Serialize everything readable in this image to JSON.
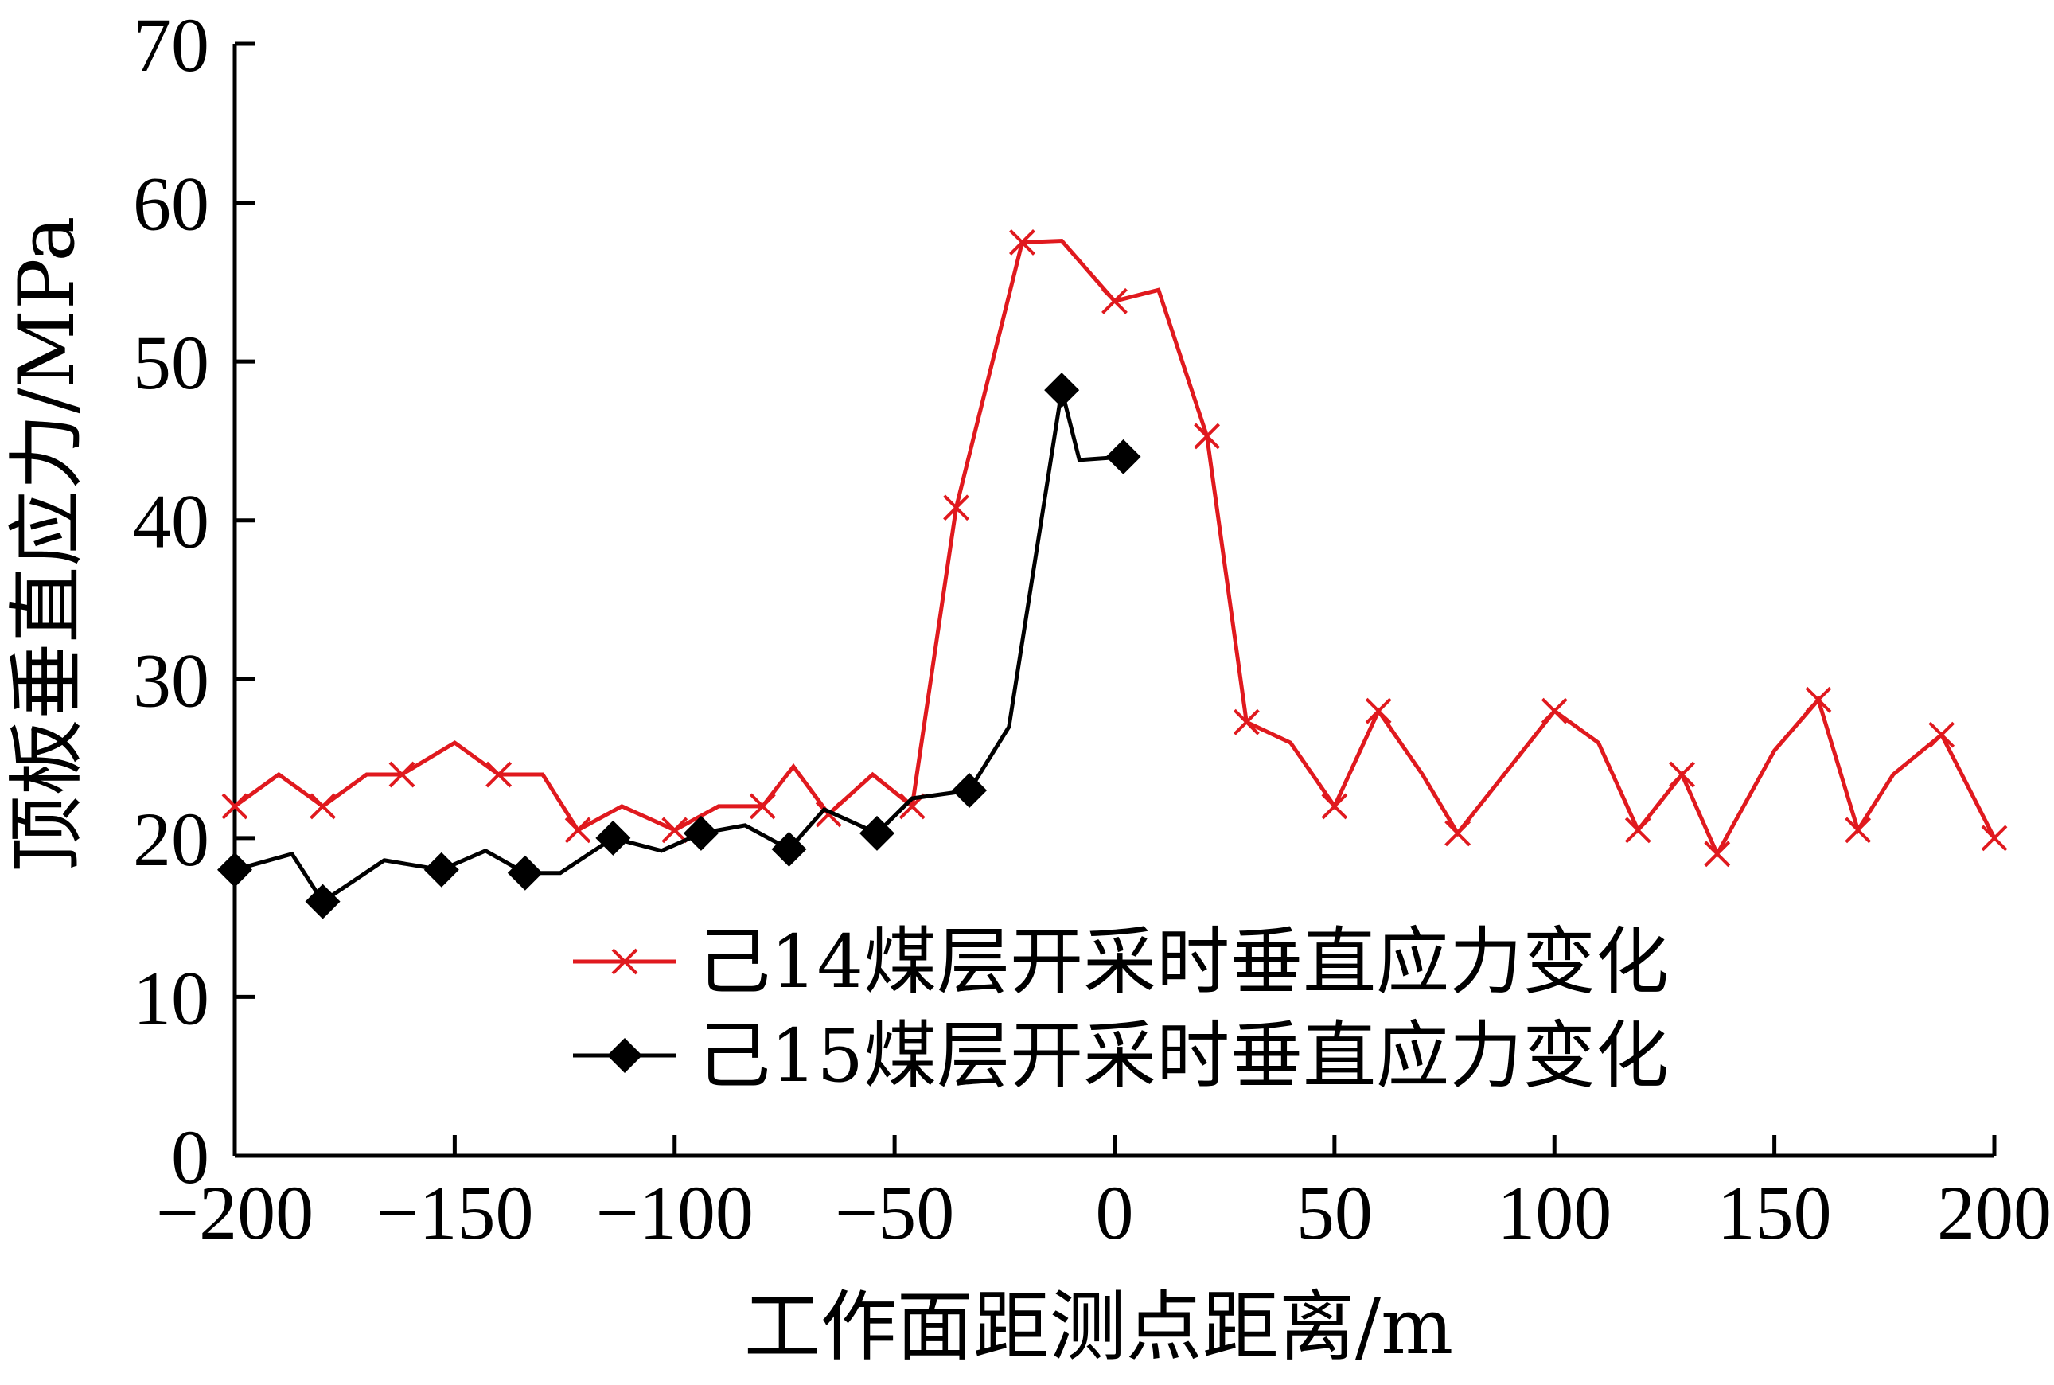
{
  "chart_data": {
    "type": "line",
    "xlabel": "工作面距测点距离/m",
    "ylabel": "顶板垂直应力/MPa",
    "xlim": [
      -200,
      200
    ],
    "ylim": [
      0,
      70
    ],
    "x_ticks": [
      "−200",
      "−150",
      "−100",
      "−50",
      "0",
      "50",
      "100",
      "150",
      "200"
    ],
    "y_ticks": [
      "0",
      "10",
      "20",
      "30",
      "40",
      "50",
      "60",
      "70"
    ],
    "grid": false,
    "legend_position": "center-bottom",
    "series": [
      {
        "name": "己14煤层开采时垂直应力变化",
        "color": "#e0191e",
        "marker": "x",
        "points": [
          [
            -200,
            22
          ],
          [
            -190,
            24
          ],
          [
            -180,
            22
          ],
          [
            -170,
            24
          ],
          [
            -162,
            24
          ],
          [
            -150,
            26
          ],
          [
            -140,
            24
          ],
          [
            -130,
            24
          ],
          [
            -122,
            20.5
          ],
          [
            -112,
            22
          ],
          [
            -100,
            20.5
          ],
          [
            -90,
            22
          ],
          [
            -80,
            22
          ],
          [
            -73,
            24.5
          ],
          [
            -65,
            21.5
          ],
          [
            -55,
            24
          ],
          [
            -46,
            22
          ],
          [
            -36,
            40.8
          ],
          [
            -21,
            57.5
          ],
          [
            -12,
            57.6
          ],
          [
            0,
            53.8
          ],
          [
            10,
            54.5
          ],
          [
            21,
            45.3
          ],
          [
            30,
            27.3
          ],
          [
            40,
            26
          ],
          [
            50,
            22
          ],
          [
            60,
            28
          ],
          [
            70,
            24
          ],
          [
            78,
            20.3
          ],
          [
            90,
            24.5
          ],
          [
            100,
            28
          ],
          [
            110,
            26
          ],
          [
            119,
            20.5
          ],
          [
            129,
            24
          ],
          [
            137,
            19
          ],
          [
            150,
            25.5
          ],
          [
            160,
            28.7
          ],
          [
            169,
            20.5
          ],
          [
            177,
            24
          ],
          [
            188,
            26.5
          ],
          [
            200,
            20
          ]
        ],
        "marker_at": [
          -200,
          -180,
          -162,
          -140,
          -122,
          -100,
          -80,
          -65,
          -46,
          -36,
          -21,
          0,
          21,
          30,
          50,
          60,
          78,
          100,
          119,
          129,
          137,
          160,
          169,
          188,
          200
        ]
      },
      {
        "name": "己15煤层开采时垂直应力变化",
        "color": "#000000",
        "marker": "diamond",
        "points": [
          [
            -200,
            18
          ],
          [
            -187,
            19
          ],
          [
            -180,
            16
          ],
          [
            -166,
            18.6
          ],
          [
            -153,
            18
          ],
          [
            -143,
            19.2
          ],
          [
            -134,
            17.8
          ],
          [
            -126,
            17.8
          ],
          [
            -114,
            20
          ],
          [
            -103,
            19.2
          ],
          [
            -94,
            20.3
          ],
          [
            -84,
            20.8
          ],
          [
            -74,
            19.3
          ],
          [
            -66,
            21.8
          ],
          [
            -54,
            20.3
          ],
          [
            -46,
            22.5
          ],
          [
            -33,
            23
          ],
          [
            -24,
            27
          ],
          [
            -12,
            48.2
          ],
          [
            -8,
            43.8
          ],
          [
            2,
            44
          ]
        ],
        "marker_at": [
          -200,
          -180,
          -153,
          -134,
          -114,
          -94,
          -74,
          -54,
          -33,
          -12,
          2
        ]
      }
    ]
  }
}
